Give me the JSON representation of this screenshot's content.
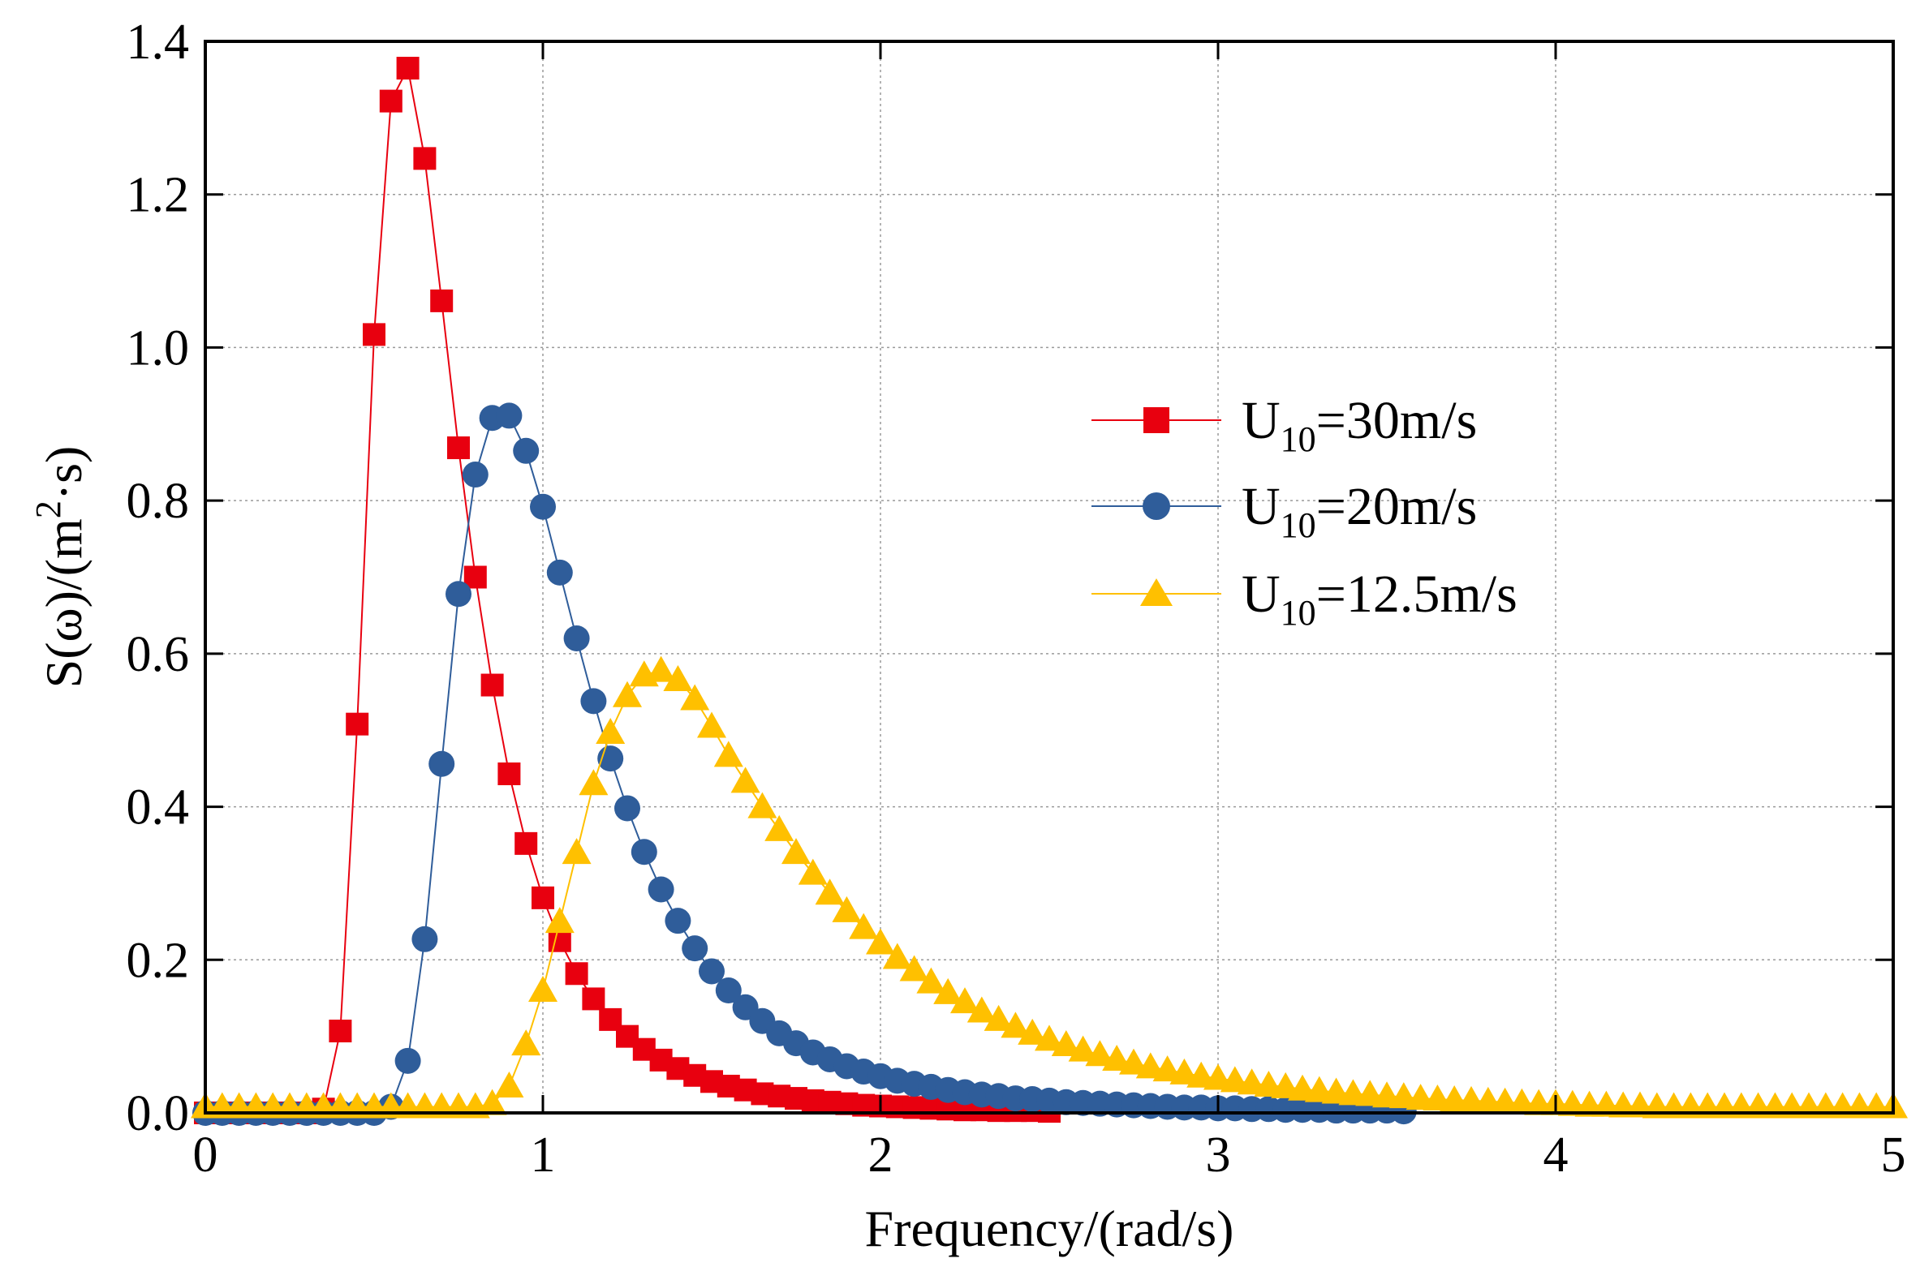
{
  "chart_data": {
    "type": "scatter",
    "title": "",
    "xlabel": "Frequency/(rad/s)",
    "ylabel": {
      "prefix": "S(ω)/(m",
      "superscript": "2",
      "suffix": "·s)"
    },
    "xlim": [
      0,
      5
    ],
    "ylim": [
      0,
      1.4
    ],
    "x_ticks": [
      "0",
      "1",
      "2",
      "3",
      "4",
      "5"
    ],
    "y_ticks": [
      "0.0",
      "0.2",
      "0.4",
      "0.6",
      "0.8",
      "1.0",
      "1.2",
      "1.4"
    ],
    "grid": true,
    "legend_position": "right-middle",
    "x_step": 0.05,
    "series": [
      {
        "name": "U10=30m/s",
        "legend": {
          "base": "U",
          "sub": "10",
          "rest": "=30m/s"
        },
        "marker": "square",
        "color": "#e8000f",
        "values": [
          0,
          0,
          0,
          0,
          0,
          0,
          0,
          0.005,
          0.107,
          0.508,
          1.017,
          1.322,
          1.365,
          1.247,
          1.061,
          0.869,
          0.7,
          0.559,
          0.443,
          0.352,
          0.281,
          0.225,
          0.182,
          0.149,
          0.122,
          0.1,
          0.083,
          0.069,
          0.058,
          0.049,
          0.041,
          0.035,
          0.03,
          0.025,
          0.022,
          0.019,
          0.016,
          0.014,
          0.012,
          0.01,
          0.009,
          0.008,
          0.007,
          0.006,
          0.005,
          0.004,
          0.004,
          0.003,
          0.003,
          0.003,
          0.002
        ]
      },
      {
        "name": "U10=20m/s",
        "legend": {
          "base": "U",
          "sub": "10",
          "rest": "=20m/s"
        },
        "marker": "circle",
        "color": "#2f5d9a",
        "values": [
          0,
          0,
          0,
          0,
          0,
          0,
          0,
          0,
          0,
          0,
          0,
          0.008,
          0.068,
          0.227,
          0.456,
          0.678,
          0.834,
          0.908,
          0.911,
          0.865,
          0.792,
          0.706,
          0.62,
          0.538,
          0.463,
          0.398,
          0.341,
          0.292,
          0.251,
          0.215,
          0.185,
          0.16,
          0.138,
          0.12,
          0.104,
          0.091,
          0.079,
          0.07,
          0.061,
          0.054,
          0.048,
          0.042,
          0.038,
          0.034,
          0.03,
          0.027,
          0.024,
          0.022,
          0.019,
          0.018,
          0.016,
          0.014,
          0.013,
          0.012,
          0.011,
          0.01,
          0.009,
          0.008,
          0.007,
          0.007,
          0.006,
          0.006,
          0.005,
          0.005,
          0.004,
          0.004,
          0.004,
          0.003,
          0.003,
          0.003,
          0.003,
          0.002
        ]
      },
      {
        "name": "U10=12.5m/s",
        "legend": {
          "base": "U",
          "sub": "10",
          "rest": "=12.5m/s"
        },
        "marker": "triangle",
        "color": "#ffc000",
        "values": [
          0.008,
          0.008,
          0.008,
          0.008,
          0.008,
          0.008,
          0.008,
          0.008,
          0.008,
          0.008,
          0.008,
          0.008,
          0.008,
          0.008,
          0.008,
          0.008,
          0.008,
          0.012,
          0.035,
          0.09,
          0.16,
          0.25,
          0.34,
          0.43,
          0.497,
          0.545,
          0.572,
          0.578,
          0.566,
          0.541,
          0.505,
          0.467,
          0.433,
          0.4,
          0.37,
          0.34,
          0.313,
          0.287,
          0.264,
          0.242,
          0.222,
          0.203,
          0.187,
          0.171,
          0.157,
          0.145,
          0.133,
          0.122,
          0.113,
          0.104,
          0.096,
          0.089,
          0.082,
          0.076,
          0.07,
          0.065,
          0.06,
          0.056,
          0.052,
          0.048,
          0.045,
          0.042,
          0.039,
          0.036,
          0.034,
          0.031,
          0.029,
          0.027,
          0.025,
          0.024,
          0.022,
          0.021,
          0.019,
          0.018,
          0.017,
          0.016,
          0.015,
          0.014,
          0.013,
          0.012,
          0.012,
          0.011,
          0.01,
          0.01,
          0.009,
          0.009,
          0.008,
          0.008,
          0.008,
          0.008,
          0.008,
          0.008,
          0.008,
          0.008,
          0.008,
          0.008,
          0.008,
          0.008,
          0.008,
          0.008,
          0.008
        ]
      }
    ]
  }
}
